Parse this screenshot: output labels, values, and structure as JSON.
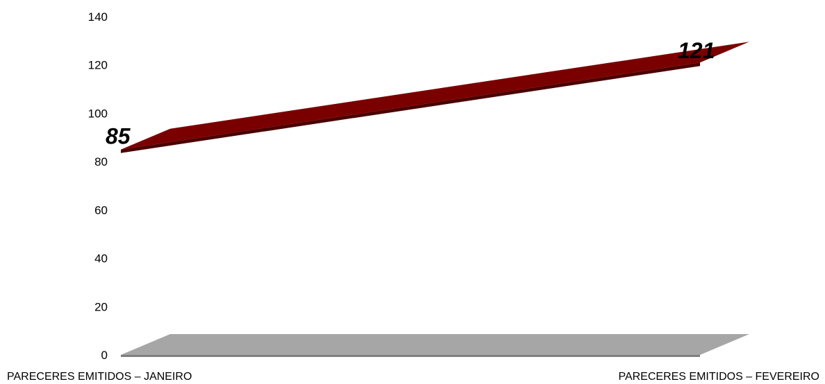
{
  "chart_data": {
    "type": "line",
    "style": "3d-ribbon",
    "categories": [
      "PARECERES EMITIDOS – JANEIRO",
      "PARECERES EMITIDOS – FEVEREIRO"
    ],
    "series": [
      {
        "values": [
          85,
          121
        ],
        "data_labels": [
          "85",
          "121"
        ],
        "color": "#7a0000"
      }
    ],
    "yticks": [
      "0",
      "20",
      "40",
      "60",
      "80",
      "100",
      "120",
      "140"
    ],
    "ylim": [
      0,
      140
    ],
    "floor_color": "#a6a6a6",
    "grid": false,
    "legend": "none"
  }
}
